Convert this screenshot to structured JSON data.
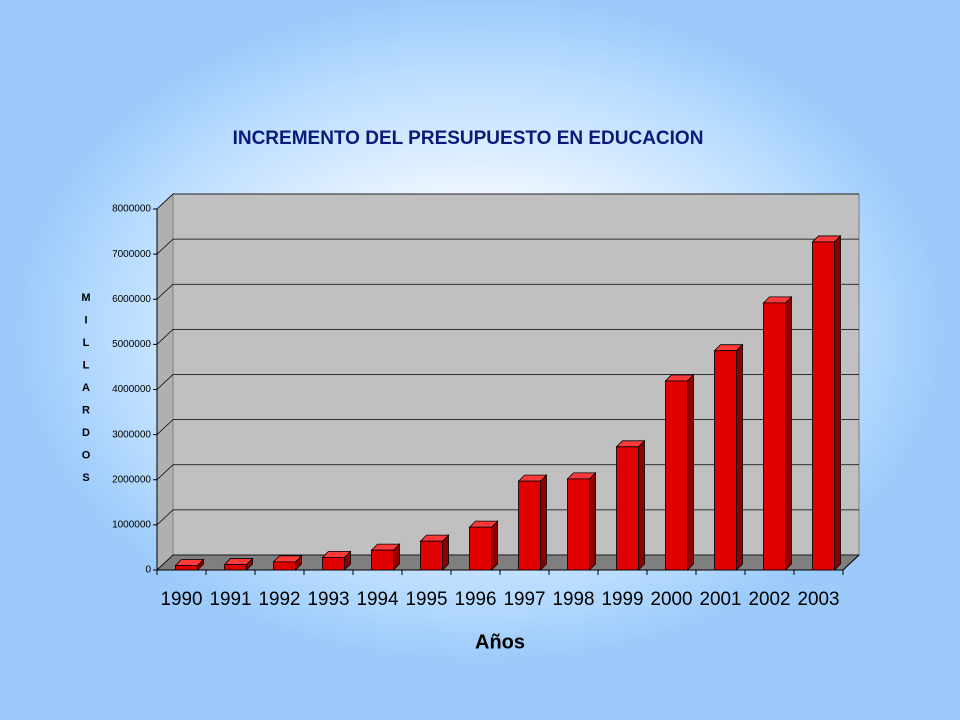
{
  "chart_data": {
    "type": "bar",
    "title": "INCREMENTO DEL PRESUPUESTO EN EDUCACION",
    "x_label": "Años",
    "y_label": "MILLARDOS",
    "categories": [
      "1990",
      "1991",
      "1992",
      "1993",
      "1994",
      "1995",
      "1996",
      "1997",
      "1998",
      "1999",
      "2000",
      "2001",
      "2002",
      "2003"
    ],
    "values": [
      100000,
      120000,
      180000,
      280000,
      440000,
      640000,
      950000,
      1970000,
      2020000,
      2730000,
      4190000,
      4860000,
      5920000,
      7270000
    ],
    "color": "#e00000",
    "ylim": [
      0,
      8000000
    ],
    "yticks": [
      0,
      1000000,
      2000000,
      3000000,
      4000000,
      5000000,
      6000000,
      7000000,
      8000000
    ],
    "grid": true
  }
}
